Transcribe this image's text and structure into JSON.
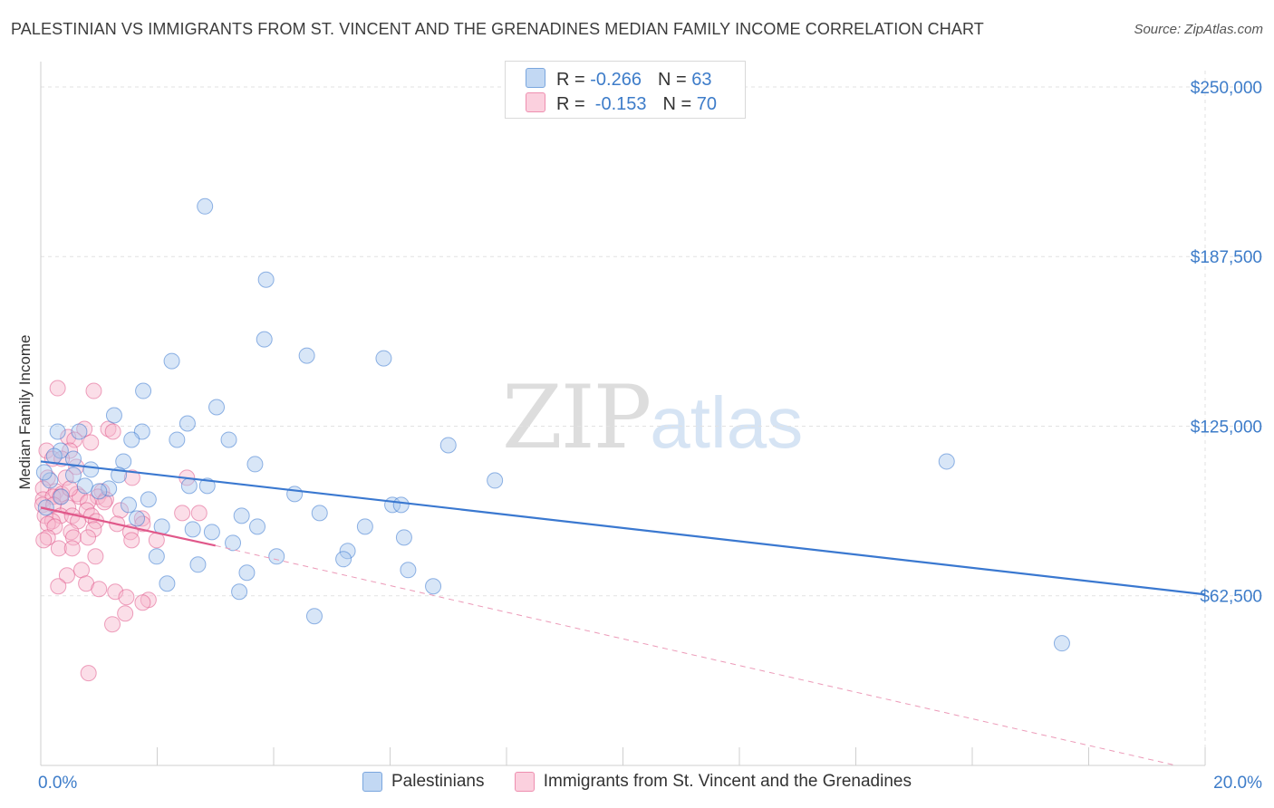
{
  "header": {
    "title": "PALESTINIAN VS IMMIGRANTS FROM ST. VINCENT AND THE GRENADINES MEDIAN FAMILY INCOME CORRELATION CHART",
    "source": "Source: ZipAtlas.com"
  },
  "watermark": {
    "zip": "ZIP",
    "atlas": "atlas"
  },
  "legend_top": {
    "rows": [
      {
        "r_label": "R = ",
        "r_value": "-0.266",
        "n_label": "N = ",
        "n_value": "63",
        "color": "#a9c8ee"
      },
      {
        "r_label": "R = ",
        "r_value": " -0.153",
        "n_label": "N = ",
        "n_value": "70",
        "color": "#f6b6cb"
      }
    ]
  },
  "legend_bottom": {
    "items": [
      {
        "label": "Palestinians",
        "color": "#a9c8ee"
      },
      {
        "label": "Immigrants from St. Vincent and the Grenadines",
        "color": "#f6b6cb"
      }
    ]
  },
  "chart_data": {
    "type": "scatter",
    "title": "PALESTINIAN VS IMMIGRANTS FROM ST. VINCENT AND THE GRENADINES MEDIAN FAMILY INCOME CORRELATION CHART",
    "xlabel": "",
    "ylabel": "Median Family Income",
    "xlim": [
      0,
      20
    ],
    "ylim": [
      0,
      256000
    ],
    "x_tick_labels": [
      {
        "value": 0,
        "label": "0.0%"
      },
      {
        "value": 20,
        "label": "20.0%"
      }
    ],
    "x_minor_ticks": [
      2,
      4,
      6,
      8,
      10,
      12,
      14,
      16,
      18,
      20
    ],
    "y_ticks": [
      {
        "value": 62500,
        "label": "$62,500"
      },
      {
        "value": 125000,
        "label": "$125,000"
      },
      {
        "value": 187500,
        "label": "$187,500"
      },
      {
        "value": 250000,
        "label": "$250,000"
      }
    ],
    "grid": true,
    "legend": "top-center",
    "series": [
      {
        "name": "Palestinians",
        "color": "#3a78d0",
        "fill": "#a9c8ee",
        "r": -0.266,
        "n": 63,
        "trend": {
          "x0": 0,
          "y0": 112000,
          "x1": 20,
          "y1": 63000,
          "style": "solid"
        },
        "points": [
          [
            2.82,
            206000
          ],
          [
            3.87,
            179000
          ],
          [
            3.84,
            157000
          ],
          [
            4.57,
            151000
          ],
          [
            5.89,
            150000
          ],
          [
            2.25,
            149000
          ],
          [
            1.76,
            138000
          ],
          [
            3.02,
            132000
          ],
          [
            1.26,
            129000
          ],
          [
            2.52,
            126000
          ],
          [
            0.29,
            123000
          ],
          [
            0.66,
            123000
          ],
          [
            1.74,
            123000
          ],
          [
            1.56,
            120000
          ],
          [
            2.34,
            120000
          ],
          [
            3.23,
            120000
          ],
          [
            7.0,
            118000
          ],
          [
            0.34,
            116000
          ],
          [
            0.23,
            114000
          ],
          [
            0.56,
            113000
          ],
          [
            1.42,
            112000
          ],
          [
            3.68,
            111000
          ],
          [
            0.86,
            109000
          ],
          [
            1.34,
            107000
          ],
          [
            0.56,
            107000
          ],
          [
            0.16,
            105000
          ],
          [
            7.8,
            105000
          ],
          [
            15.56,
            112000
          ],
          [
            0.76,
            103000
          ],
          [
            1.17,
            102000
          ],
          [
            2.55,
            103000
          ],
          [
            2.86,
            103000
          ],
          [
            4.36,
            100000
          ],
          [
            1.85,
            98000
          ],
          [
            1.51,
            96000
          ],
          [
            6.04,
            96000
          ],
          [
            6.19,
            96000
          ],
          [
            0.09,
            95000
          ],
          [
            4.79,
            93000
          ],
          [
            3.45,
            92000
          ],
          [
            1.65,
            91000
          ],
          [
            2.08,
            88000
          ],
          [
            3.72,
            88000
          ],
          [
            5.57,
            88000
          ],
          [
            2.61,
            87000
          ],
          [
            2.94,
            86000
          ],
          [
            6.24,
            84000
          ],
          [
            3.3,
            82000
          ],
          [
            5.27,
            79000
          ],
          [
            1.99,
            77000
          ],
          [
            4.05,
            77000
          ],
          [
            5.2,
            76000
          ],
          [
            2.7,
            74000
          ],
          [
            3.54,
            71000
          ],
          [
            6.31,
            72000
          ],
          [
            2.17,
            67000
          ],
          [
            6.74,
            66000
          ],
          [
            3.41,
            64000
          ],
          [
            4.7,
            55000
          ],
          [
            17.54,
            45000
          ],
          [
            0.06,
            108000
          ],
          [
            0.35,
            99000
          ],
          [
            1.0,
            101000
          ]
        ]
      },
      {
        "name": "Immigrants from St. Vincent and the Grenadines",
        "color": "#e0588a",
        "fill": "#f6b6cb",
        "r": -0.153,
        "n": 70,
        "trend": {
          "x0": 0,
          "y0": 95000,
          "x1": 3.0,
          "y1": 81000,
          "x2": 19.5,
          "y2": 0,
          "style": "solid-then-dashed"
        },
        "points": [
          [
            0.29,
            139000
          ],
          [
            0.91,
            138000
          ],
          [
            0.75,
            124000
          ],
          [
            1.16,
            124000
          ],
          [
            1.24,
            123000
          ],
          [
            0.47,
            121000
          ],
          [
            0.58,
            120000
          ],
          [
            0.86,
            119000
          ],
          [
            0.1,
            116000
          ],
          [
            0.5,
            116000
          ],
          [
            0.2,
            113000
          ],
          [
            0.36,
            113000
          ],
          [
            0.61,
            110000
          ],
          [
            0.12,
            106000
          ],
          [
            0.43,
            106000
          ],
          [
            1.57,
            106000
          ],
          [
            2.51,
            106000
          ],
          [
            0.04,
            102000
          ],
          [
            0.26,
            101000
          ],
          [
            1.05,
            101000
          ],
          [
            0.36,
            100000
          ],
          [
            0.62,
            100000
          ],
          [
            0.04,
            98000
          ],
          [
            0.21,
            99000
          ],
          [
            0.33,
            99000
          ],
          [
            0.67,
            99000
          ],
          [
            0.98,
            99000
          ],
          [
            1.12,
            98000
          ],
          [
            0.81,
            97000
          ],
          [
            1.09,
            97000
          ],
          [
            0.03,
            96000
          ],
          [
            0.22,
            96000
          ],
          [
            0.47,
            95000
          ],
          [
            0.79,
            94000
          ],
          [
            1.37,
            94000
          ],
          [
            2.43,
            93000
          ],
          [
            2.72,
            93000
          ],
          [
            0.07,
            92000
          ],
          [
            0.34,
            92000
          ],
          [
            0.54,
            92000
          ],
          [
            0.87,
            92000
          ],
          [
            1.74,
            91000
          ],
          [
            0.2,
            90000
          ],
          [
            0.64,
            90000
          ],
          [
            0.95,
            90000
          ],
          [
            0.12,
            89000
          ],
          [
            1.31,
            89000
          ],
          [
            1.75,
            89000
          ],
          [
            0.24,
            88000
          ],
          [
            0.91,
            87000
          ],
          [
            0.52,
            86000
          ],
          [
            1.54,
            86000
          ],
          [
            0.12,
            84000
          ],
          [
            0.56,
            84000
          ],
          [
            0.81,
            84000
          ],
          [
            1.56,
            83000
          ],
          [
            0.05,
            83000
          ],
          [
            1.99,
            83000
          ],
          [
            0.31,
            80000
          ],
          [
            0.54,
            80000
          ],
          [
            0.94,
            77000
          ],
          [
            0.7,
            72000
          ],
          [
            0.45,
            70000
          ],
          [
            0.78,
            67000
          ],
          [
            1.28,
            64000
          ],
          [
            1.0,
            65000
          ],
          [
            0.3,
            66000
          ],
          [
            1.47,
            62000
          ],
          [
            1.85,
            61000
          ],
          [
            1.23,
            52000
          ]
        ]
      }
    ],
    "extra_points": {
      "Immigrants from St. Vincent and the Grenadines": [
        [
          0.82,
          34000
        ],
        [
          1.45,
          56000
        ],
        [
          1.75,
          60000
        ],
        [
          0.5,
          102000
        ]
      ]
    }
  }
}
